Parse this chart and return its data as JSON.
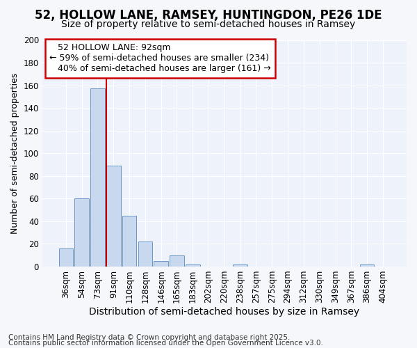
{
  "title1": "52, HOLLOW LANE, RAMSEY, HUNTINGDON, PE26 1DE",
  "title2": "Size of property relative to semi-detached houses in Ramsey",
  "xlabel": "Distribution of semi-detached houses by size in Ramsey",
  "ylabel": "Number of semi-detached properties",
  "footnote1": "Contains HM Land Registry data © Crown copyright and database right 2025.",
  "footnote2": "Contains public sector information licensed under the Open Government Licence v3.0.",
  "categories": [
    "36sqm",
    "54sqm",
    "73sqm",
    "91sqm",
    "110sqm",
    "128sqm",
    "146sqm",
    "165sqm",
    "183sqm",
    "202sqm",
    "220sqm",
    "238sqm",
    "257sqm",
    "275sqm",
    "294sqm",
    "312sqm",
    "330sqm",
    "349sqm",
    "367sqm",
    "386sqm",
    "404sqm"
  ],
  "values": [
    16,
    60,
    157,
    89,
    45,
    22,
    5,
    10,
    2,
    0,
    0,
    2,
    0,
    0,
    0,
    0,
    0,
    0,
    0,
    2,
    0
  ],
  "bar_color": "#c8d8ee",
  "bar_edge_color": "#5a8abf",
  "property_label": "52 HOLLOW LANE: 92sqm",
  "pct_smaller": "59% of semi-detached houses are smaller (234)",
  "pct_larger": "40% of semi-detached houses are larger (161)",
  "annotation_box_color": "#cc0000",
  "vline_color": "#cc0000",
  "vline_x_index": 3,
  "ylim": [
    0,
    200
  ],
  "yticks": [
    0,
    20,
    40,
    60,
    80,
    100,
    120,
    140,
    160,
    180,
    200
  ],
  "bg_color": "#eef3fb",
  "grid_color": "#ffffff",
  "fig_bg_color": "#f5f7fb",
  "title1_fontsize": 12,
  "title2_fontsize": 10,
  "xlabel_fontsize": 10,
  "ylabel_fontsize": 9,
  "tick_fontsize": 8.5,
  "annotation_fontsize": 9,
  "footnote_fontsize": 7.5
}
